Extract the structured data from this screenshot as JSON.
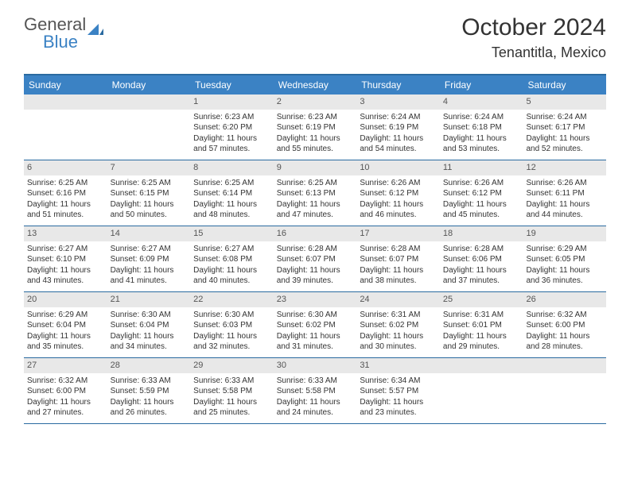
{
  "logo": {
    "part1": "General",
    "part2": "Blue"
  },
  "title": "October 2024",
  "location": "Tenantitla, Mexico",
  "colors": {
    "header_bg": "#3b82c4",
    "border": "#2a6aa0",
    "daynum_bg": "#e8e8e8",
    "text": "#333333",
    "header_text": "#ffffff"
  },
  "weekdays": [
    "Sunday",
    "Monday",
    "Tuesday",
    "Wednesday",
    "Thursday",
    "Friday",
    "Saturday"
  ],
  "weeks": [
    [
      {
        "num": "",
        "sunrise": "",
        "sunset": "",
        "daylight": ""
      },
      {
        "num": "",
        "sunrise": "",
        "sunset": "",
        "daylight": ""
      },
      {
        "num": "1",
        "sunrise": "Sunrise: 6:23 AM",
        "sunset": "Sunset: 6:20 PM",
        "daylight": "Daylight: 11 hours and 57 minutes."
      },
      {
        "num": "2",
        "sunrise": "Sunrise: 6:23 AM",
        "sunset": "Sunset: 6:19 PM",
        "daylight": "Daylight: 11 hours and 55 minutes."
      },
      {
        "num": "3",
        "sunrise": "Sunrise: 6:24 AM",
        "sunset": "Sunset: 6:19 PM",
        "daylight": "Daylight: 11 hours and 54 minutes."
      },
      {
        "num": "4",
        "sunrise": "Sunrise: 6:24 AM",
        "sunset": "Sunset: 6:18 PM",
        "daylight": "Daylight: 11 hours and 53 minutes."
      },
      {
        "num": "5",
        "sunrise": "Sunrise: 6:24 AM",
        "sunset": "Sunset: 6:17 PM",
        "daylight": "Daylight: 11 hours and 52 minutes."
      }
    ],
    [
      {
        "num": "6",
        "sunrise": "Sunrise: 6:25 AM",
        "sunset": "Sunset: 6:16 PM",
        "daylight": "Daylight: 11 hours and 51 minutes."
      },
      {
        "num": "7",
        "sunrise": "Sunrise: 6:25 AM",
        "sunset": "Sunset: 6:15 PM",
        "daylight": "Daylight: 11 hours and 50 minutes."
      },
      {
        "num": "8",
        "sunrise": "Sunrise: 6:25 AM",
        "sunset": "Sunset: 6:14 PM",
        "daylight": "Daylight: 11 hours and 48 minutes."
      },
      {
        "num": "9",
        "sunrise": "Sunrise: 6:25 AM",
        "sunset": "Sunset: 6:13 PM",
        "daylight": "Daylight: 11 hours and 47 minutes."
      },
      {
        "num": "10",
        "sunrise": "Sunrise: 6:26 AM",
        "sunset": "Sunset: 6:12 PM",
        "daylight": "Daylight: 11 hours and 46 minutes."
      },
      {
        "num": "11",
        "sunrise": "Sunrise: 6:26 AM",
        "sunset": "Sunset: 6:12 PM",
        "daylight": "Daylight: 11 hours and 45 minutes."
      },
      {
        "num": "12",
        "sunrise": "Sunrise: 6:26 AM",
        "sunset": "Sunset: 6:11 PM",
        "daylight": "Daylight: 11 hours and 44 minutes."
      }
    ],
    [
      {
        "num": "13",
        "sunrise": "Sunrise: 6:27 AM",
        "sunset": "Sunset: 6:10 PM",
        "daylight": "Daylight: 11 hours and 43 minutes."
      },
      {
        "num": "14",
        "sunrise": "Sunrise: 6:27 AM",
        "sunset": "Sunset: 6:09 PM",
        "daylight": "Daylight: 11 hours and 41 minutes."
      },
      {
        "num": "15",
        "sunrise": "Sunrise: 6:27 AM",
        "sunset": "Sunset: 6:08 PM",
        "daylight": "Daylight: 11 hours and 40 minutes."
      },
      {
        "num": "16",
        "sunrise": "Sunrise: 6:28 AM",
        "sunset": "Sunset: 6:07 PM",
        "daylight": "Daylight: 11 hours and 39 minutes."
      },
      {
        "num": "17",
        "sunrise": "Sunrise: 6:28 AM",
        "sunset": "Sunset: 6:07 PM",
        "daylight": "Daylight: 11 hours and 38 minutes."
      },
      {
        "num": "18",
        "sunrise": "Sunrise: 6:28 AM",
        "sunset": "Sunset: 6:06 PM",
        "daylight": "Daylight: 11 hours and 37 minutes."
      },
      {
        "num": "19",
        "sunrise": "Sunrise: 6:29 AM",
        "sunset": "Sunset: 6:05 PM",
        "daylight": "Daylight: 11 hours and 36 minutes."
      }
    ],
    [
      {
        "num": "20",
        "sunrise": "Sunrise: 6:29 AM",
        "sunset": "Sunset: 6:04 PM",
        "daylight": "Daylight: 11 hours and 35 minutes."
      },
      {
        "num": "21",
        "sunrise": "Sunrise: 6:30 AM",
        "sunset": "Sunset: 6:04 PM",
        "daylight": "Daylight: 11 hours and 34 minutes."
      },
      {
        "num": "22",
        "sunrise": "Sunrise: 6:30 AM",
        "sunset": "Sunset: 6:03 PM",
        "daylight": "Daylight: 11 hours and 32 minutes."
      },
      {
        "num": "23",
        "sunrise": "Sunrise: 6:30 AM",
        "sunset": "Sunset: 6:02 PM",
        "daylight": "Daylight: 11 hours and 31 minutes."
      },
      {
        "num": "24",
        "sunrise": "Sunrise: 6:31 AM",
        "sunset": "Sunset: 6:02 PM",
        "daylight": "Daylight: 11 hours and 30 minutes."
      },
      {
        "num": "25",
        "sunrise": "Sunrise: 6:31 AM",
        "sunset": "Sunset: 6:01 PM",
        "daylight": "Daylight: 11 hours and 29 minutes."
      },
      {
        "num": "26",
        "sunrise": "Sunrise: 6:32 AM",
        "sunset": "Sunset: 6:00 PM",
        "daylight": "Daylight: 11 hours and 28 minutes."
      }
    ],
    [
      {
        "num": "27",
        "sunrise": "Sunrise: 6:32 AM",
        "sunset": "Sunset: 6:00 PM",
        "daylight": "Daylight: 11 hours and 27 minutes."
      },
      {
        "num": "28",
        "sunrise": "Sunrise: 6:33 AM",
        "sunset": "Sunset: 5:59 PM",
        "daylight": "Daylight: 11 hours and 26 minutes."
      },
      {
        "num": "29",
        "sunrise": "Sunrise: 6:33 AM",
        "sunset": "Sunset: 5:58 PM",
        "daylight": "Daylight: 11 hours and 25 minutes."
      },
      {
        "num": "30",
        "sunrise": "Sunrise: 6:33 AM",
        "sunset": "Sunset: 5:58 PM",
        "daylight": "Daylight: 11 hours and 24 minutes."
      },
      {
        "num": "31",
        "sunrise": "Sunrise: 6:34 AM",
        "sunset": "Sunset: 5:57 PM",
        "daylight": "Daylight: 11 hours and 23 minutes."
      },
      {
        "num": "",
        "sunrise": "",
        "sunset": "",
        "daylight": ""
      },
      {
        "num": "",
        "sunrise": "",
        "sunset": "",
        "daylight": ""
      }
    ]
  ]
}
